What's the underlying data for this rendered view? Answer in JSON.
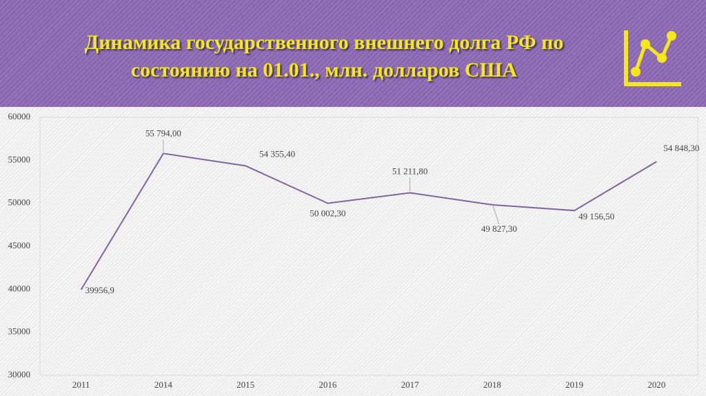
{
  "chart_data": {
    "type": "line",
    "title": "Динамика государственного внешнего долга РФ по состоянию на 01.01., млн. долларов США",
    "categories": [
      "2011",
      "2014",
      "2015",
      "2016",
      "2017",
      "2018",
      "2019",
      "2020"
    ],
    "values": [
      39956.9,
      55794,
      54355.4,
      50002.3,
      51211.8,
      49827.3,
      49156.5,
      54848.3
    ],
    "value_labels": [
      "39956,9",
      "55 794,00",
      "54 355,40",
      "50 002,30",
      "51 211,80",
      "49 827,30",
      "49 156,50",
      "54 848,30"
    ],
    "color": "#8064a2",
    "ylim": [
      30000,
      60000
    ],
    "yticks": [
      30000,
      35000,
      40000,
      45000,
      50000,
      55000,
      60000
    ],
    "grid": false
  }
}
